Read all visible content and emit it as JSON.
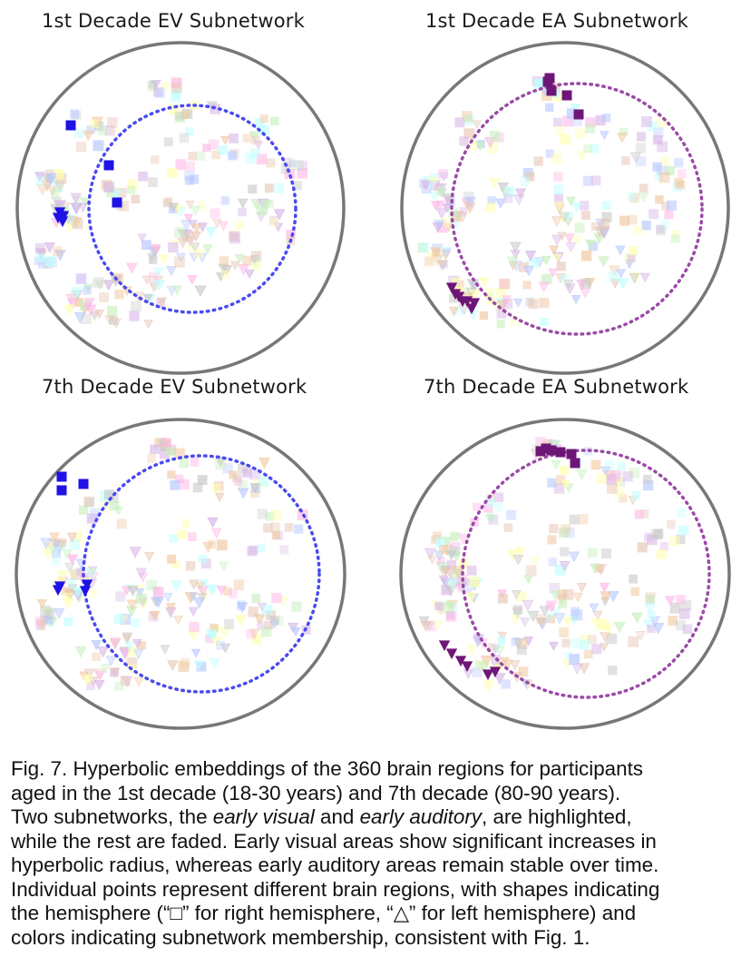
{
  "figure": {
    "panels": [
      {
        "title": "1st Decade EV Subnetwork",
        "highlight_color": "#1f12e6",
        "ring_color": "#4a4af0"
      },
      {
        "title": "1st Decade EA Subnetwork",
        "highlight_color": "#6e1678",
        "ring_color": "#9a4aa6"
      },
      {
        "title": "7th Decade EV Subnetwork",
        "highlight_color": "#1f12e6",
        "ring_color": "#4a4af0"
      },
      {
        "title": "7th Decade EA Subnetwork",
        "highlight_color": "#6e1678",
        "ring_color": "#9a4aa6"
      }
    ],
    "faded_colors": [
      "#b8c8ff",
      "#ffb8e8",
      "#c8f0c0",
      "#c0ffff",
      "#ffffb0",
      "#d8b8e8",
      "#e8c8b8",
      "#c8c8c8",
      "#f0c8a0"
    ],
    "boundary_color": "#777777"
  },
  "caption": {
    "lines": [
      "Fig. 7.   Hyperbolic embeddings of the 360 brain regions for participants",
      "aged in the 1st decade (18-30 years) and 7th decade (80-90 years).",
      "Two subnetworks, the |early visual| and |early auditory|, are highlighted,",
      "while the rest are faded. Early visual areas show significant increases in",
      "hyperbolic radius, whereas early auditory areas remain stable over time.",
      "Individual points represent different brain regions, with shapes indicating",
      "the hemisphere (“□” for right hemisphere, “△” for left hemisphere) and",
      "colors indicating subnetwork membership, consistent with Fig. 1."
    ]
  }
}
